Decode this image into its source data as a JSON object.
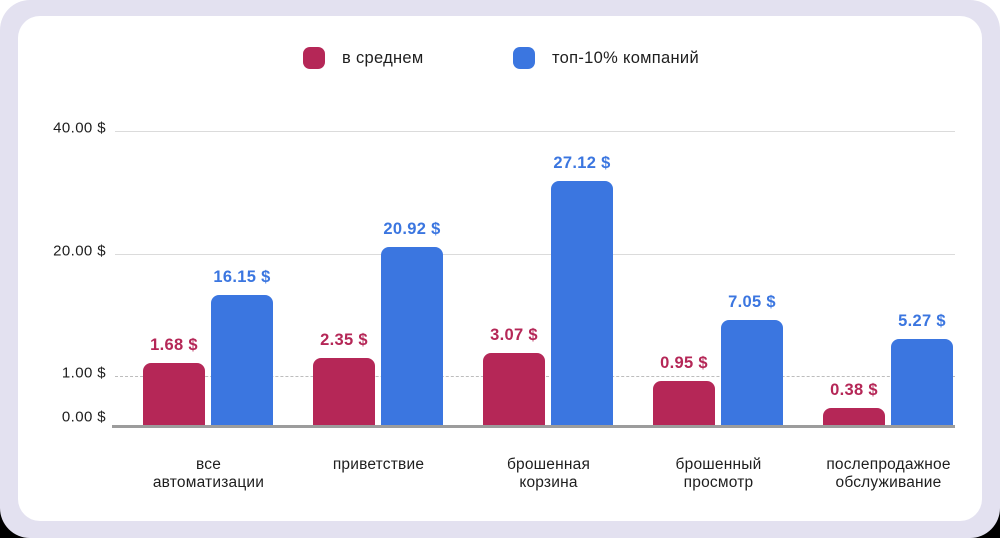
{
  "legend": {
    "items": [
      {
        "label": "в среднем",
        "color": "#B52757"
      },
      {
        "label": "топ-10% компаний",
        "color": "#3B76E0"
      }
    ]
  },
  "chart_data": {
    "type": "bar",
    "title": "",
    "categories": [
      "все автоматизации",
      "приветствие",
      "брошенная корзина",
      "брошенный просмотр",
      "послепродажное обслуживание"
    ],
    "category_lines": [
      [
        "все",
        "автоматизации"
      ],
      [
        "приветствие"
      ],
      [
        "брошенная",
        "корзина"
      ],
      [
        "брошенный",
        "просмотр"
      ],
      [
        "послепродажное",
        "обслуживание"
      ]
    ],
    "series": [
      {
        "name": "в среднем",
        "color": "#B52757",
        "values": [
          1.68,
          2.35,
          3.07,
          0.95,
          0.38
        ],
        "value_labels": [
          "1.68 $",
          "2.35 $",
          "3.07 $",
          "0.95 $",
          "0.38 $"
        ]
      },
      {
        "name": "топ-10% компаний",
        "color": "#3B76E0",
        "values": [
          16.15,
          20.92,
          27.12,
          7.05,
          5.27
        ],
        "value_labels": [
          "16.15 $",
          "20.92 $",
          "27.12 $",
          "7.05 $",
          "5.27 $"
        ]
      }
    ],
    "y_axis": {
      "unit": "$",
      "scale": "nonlinear",
      "ticks": [
        {
          "label": "40.00 $",
          "value": 40,
          "style": "solid"
        },
        {
          "label": "20.00 $",
          "value": 20,
          "style": "solid"
        },
        {
          "label": "1.00 $",
          "value": 1,
          "style": "dashed"
        },
        {
          "label": "0.00 $",
          "value": 0,
          "style": "baseline"
        }
      ]
    },
    "legend_position": "top",
    "grid": true
  },
  "colors": {
    "outer_background": "#E3E1F0",
    "card_background": "#FFFFFF",
    "grid_solid": "#DBDBDB",
    "grid_dashed": "#BDBDBD",
    "axis_baseline": "#9C9C9C",
    "text": "#1E1E1E"
  }
}
